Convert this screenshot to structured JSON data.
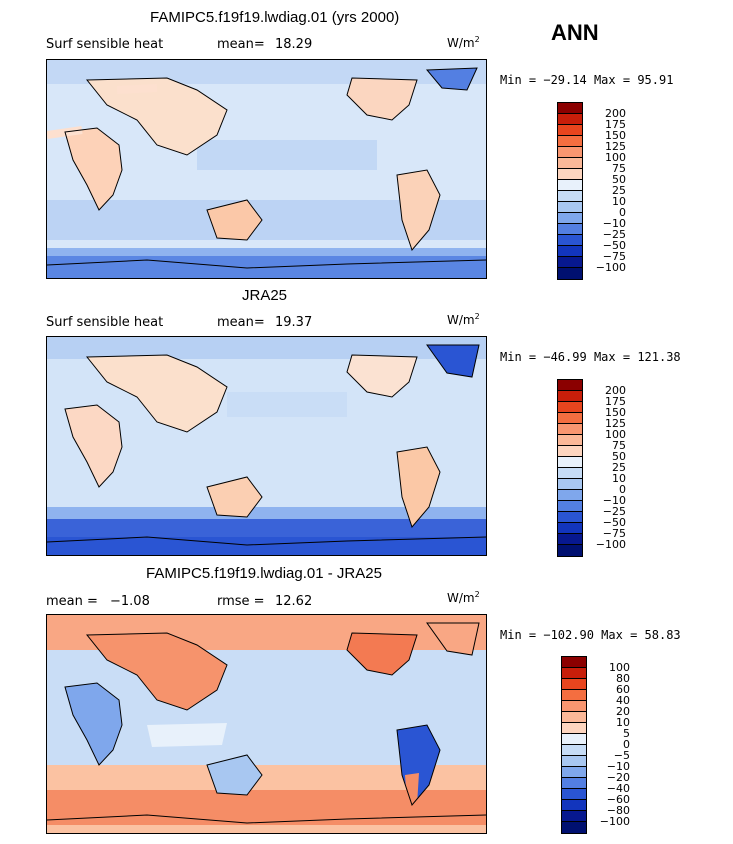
{
  "ann_label": "ANN",
  "chart_data": [
    {
      "type": "heatmap",
      "title": "FAMIPC5.f19f19.lwdiag.01 (yrs 2000)",
      "subtitle": "Surf sensible heat",
      "mean_label": "mean=",
      "mean_value": "18.29",
      "units_base": "W/m",
      "units_exp": "2",
      "min_label": "Min = ",
      "min_value": "−29.14",
      "max_label": "Max = ",
      "max_value": "95.91",
      "colorbar_levels": [
        "200",
        "175",
        "150",
        "125",
        "100",
        "75",
        "50",
        "25",
        "10",
        "0",
        "−10",
        "−25",
        "−50",
        "−75",
        "−100"
      ],
      "colorbar_colors": [
        "#8b0000",
        "#c81e0a",
        "#e8451e",
        "#f46e40",
        "#f99670",
        "#fbb898",
        "#fdd5bf",
        "#e8f1fb",
        "#c6dcf6",
        "#a8c7f1",
        "#7fa7ec",
        "#537fe2",
        "#2a55d3",
        "#1235bd",
        "#07188f",
        "#001070"
      ]
    },
    {
      "type": "heatmap",
      "title": "JRA25",
      "subtitle": "Surf sensible heat",
      "mean_label": "mean=",
      "mean_value": "19.37",
      "units_base": "W/m",
      "units_exp": "2",
      "min_label": "Min = ",
      "min_value": "−46.99",
      "max_label": "Max = ",
      "max_value": "121.38",
      "colorbar_levels": [
        "200",
        "175",
        "150",
        "125",
        "100",
        "75",
        "50",
        "25",
        "10",
        "0",
        "−10",
        "−25",
        "−50",
        "−75",
        "−100"
      ],
      "colorbar_colors": [
        "#8b0000",
        "#c81e0a",
        "#e8451e",
        "#f46e40",
        "#f99670",
        "#fbb898",
        "#fdd5bf",
        "#e8f1fb",
        "#c6dcf6",
        "#a8c7f1",
        "#7fa7ec",
        "#537fe2",
        "#2a55d3",
        "#1235bd",
        "#07188f",
        "#001070"
      ]
    },
    {
      "type": "heatmap",
      "title": "FAMIPC5.f19f19.lwdiag.01 - JRA25",
      "mean_label": "mean = ",
      "mean_value": "−1.08",
      "rmse_label": "rmse = ",
      "rmse_value": "12.62",
      "units_base": "W/m",
      "units_exp": "2",
      "min_label": "Min = ",
      "min_value": "−102.90",
      "max_label": "Max = ",
      "max_value": "58.83",
      "colorbar_levels": [
        "100",
        "80",
        "60",
        "40",
        "20",
        "10",
        "5",
        "0",
        "−5",
        "−10",
        "−20",
        "−40",
        "−60",
        "−80",
        "−100"
      ],
      "colorbar_colors": [
        "#8b0000",
        "#c81e0a",
        "#e8451e",
        "#f46e40",
        "#f99670",
        "#fbb898",
        "#fdd5bf",
        "#e8f1fb",
        "#c6dcf6",
        "#a8c7f1",
        "#7fa7ec",
        "#537fe2",
        "#2a55d3",
        "#1235bd",
        "#07188f",
        "#001070"
      ]
    }
  ]
}
